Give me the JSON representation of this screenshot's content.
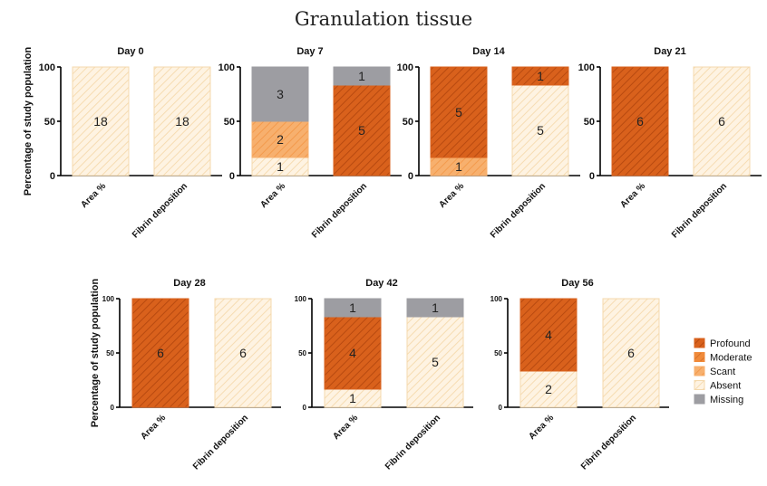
{
  "chart_data": {
    "type": "bar",
    "title": "Granulation tissue",
    "ylabel": "Percentage of study population",
    "ylim": [
      0,
      100
    ],
    "yticks": [
      0,
      50,
      100
    ],
    "categories": [
      "Area %",
      "Fibrin deposition"
    ],
    "legend": {
      "placement": "right",
      "entries": [
        {
          "name": "Profound",
          "key": "profound"
        },
        {
          "name": "Moderate",
          "key": "moderate"
        },
        {
          "name": "Scant",
          "key": "scant"
        },
        {
          "name": "Absent",
          "key": "absent"
        },
        {
          "name": "Missing",
          "key": "missing"
        }
      ]
    },
    "colors": {
      "profound": "#d9611c",
      "moderate": "#f08a3a",
      "scant": "#f7b06e",
      "absent": "#fdebd0",
      "missing": "#9d9da2"
    },
    "panels": [
      {
        "title": "Day 0",
        "bars": [
          {
            "category": "Area %",
            "segments": [
              {
                "level": "absent",
                "count": 18
              }
            ]
          },
          {
            "category": "Fibrin deposition",
            "segments": [
              {
                "level": "absent",
                "count": 18
              }
            ]
          }
        ]
      },
      {
        "title": "Day 7",
        "bars": [
          {
            "category": "Area %",
            "segments": [
              {
                "level": "absent",
                "count": 1
              },
              {
                "level": "scant",
                "count": 2
              },
              {
                "level": "missing",
                "count": 3
              }
            ]
          },
          {
            "category": "Fibrin deposition",
            "segments": [
              {
                "level": "profound",
                "count": 5
              },
              {
                "level": "missing",
                "count": 1
              }
            ]
          }
        ]
      },
      {
        "title": "Day 14",
        "bars": [
          {
            "category": "Area %",
            "segments": [
              {
                "level": "scant",
                "count": 1
              },
              {
                "level": "profound",
                "count": 5
              }
            ]
          },
          {
            "category": "Fibrin deposition",
            "segments": [
              {
                "level": "absent",
                "count": 5
              },
              {
                "level": "profound",
                "count": 1
              }
            ]
          }
        ]
      },
      {
        "title": "Day 21",
        "bars": [
          {
            "category": "Area %",
            "segments": [
              {
                "level": "profound",
                "count": 6
              }
            ]
          },
          {
            "category": "Fibrin deposition",
            "segments": [
              {
                "level": "absent",
                "count": 6
              }
            ]
          }
        ]
      },
      {
        "title": "Day 28",
        "bars": [
          {
            "category": "Area %",
            "segments": [
              {
                "level": "profound",
                "count": 6
              }
            ]
          },
          {
            "category": "Fibrin deposition",
            "segments": [
              {
                "level": "absent",
                "count": 6
              }
            ]
          }
        ]
      },
      {
        "title": "Day 42",
        "bars": [
          {
            "category": "Area %",
            "segments": [
              {
                "level": "absent",
                "count": 1
              },
              {
                "level": "profound",
                "count": 4
              },
              {
                "level": "missing",
                "count": 1
              }
            ]
          },
          {
            "category": "Fibrin deposition",
            "segments": [
              {
                "level": "absent",
                "count": 5
              },
              {
                "level": "missing",
                "count": 1
              }
            ]
          }
        ]
      },
      {
        "title": "Day 56",
        "bars": [
          {
            "category": "Area %",
            "segments": [
              {
                "level": "absent",
                "count": 2
              },
              {
                "level": "profound",
                "count": 4
              }
            ]
          },
          {
            "category": "Fibrin deposition",
            "segments": [
              {
                "level": "absent",
                "count": 6
              }
            ]
          }
        ]
      }
    ]
  }
}
